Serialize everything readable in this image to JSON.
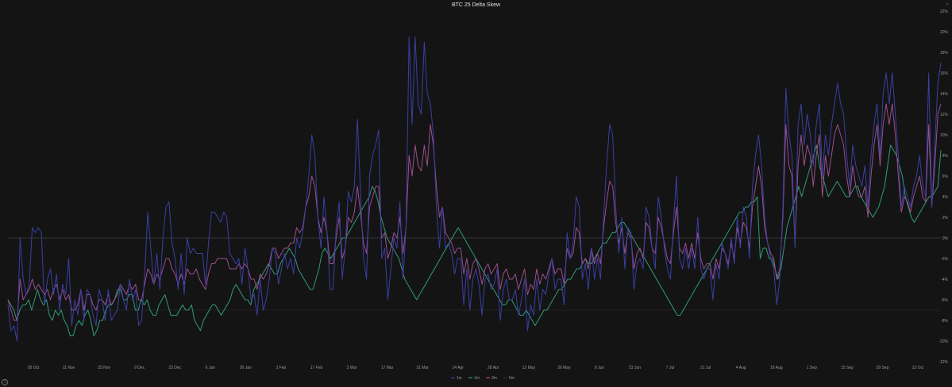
{
  "chart_data": {
    "type": "line",
    "title": "BTC 25 Delta Skew",
    "xlabel": "",
    "ylabel": "",
    "ylim": [
      -12,
      22
    ],
    "y_ticks": [
      "22%",
      "20%",
      "18%",
      "16%",
      "14%",
      "12%",
      "10%",
      "8%",
      "6%",
      "4%",
      "2%",
      "0%",
      "-2%",
      "-4%",
      "-6%",
      "-8%",
      "-10%",
      "-12%"
    ],
    "x_ticks": [
      "28 Oct",
      "11 Nov",
      "25 Nov",
      "9 Dec",
      "23 Dec",
      "6 Jan",
      "20 Jan",
      "3 Feb",
      "17 Feb",
      "3 Mar",
      "17 Mar",
      "31 Mar",
      "14 Apr",
      "28 Apr",
      "12 May",
      "26 May",
      "9 Jun",
      "23 Jun",
      "7 Jul",
      "21 Jul",
      "4 Aug",
      "18 Aug",
      "1 Sep",
      "15 Sep",
      "29 Sep",
      "13 Oct"
    ],
    "legend_position": "bottom-center",
    "grid": false,
    "zero_line": true,
    "series": [
      {
        "name": "1w",
        "color": "#3b3fa3",
        "values": [
          -6.5,
          -9,
          -8.5,
          -10,
          0,
          -4,
          -5.5,
          -4.5,
          1,
          0.5,
          1,
          0.5,
          -6.5,
          -4,
          -3,
          -5.5,
          -3.5,
          -7,
          -4.5,
          -5.5,
          -2,
          -8.5,
          -6,
          -7.5,
          -5,
          -8,
          -5,
          -5.5,
          -7.5,
          -8.5,
          -5,
          -6,
          -8,
          -5,
          -8,
          -7.5,
          -7,
          -4.5,
          -6,
          -7,
          -4,
          -6,
          -5,
          -8.5,
          -8,
          -3.5,
          2.5,
          -1,
          -4.5,
          -1.5,
          -5,
          0,
          3,
          3.5,
          -0.5,
          -2,
          -5,
          -1.5,
          -5.5,
          0,
          -1.5,
          -1,
          -1.5,
          -1.5,
          -1.5,
          -4.5,
          -0.5,
          2.5,
          2.5,
          2,
          1.5,
          2.5,
          2,
          -1.5,
          -2,
          -2.5,
          -2,
          -4.5,
          -1,
          -3,
          -6,
          -5.5,
          -7.5,
          -4,
          -7,
          -6,
          -4,
          -1,
          -1.5,
          -4.5,
          -3,
          -1.5,
          -3,
          -2,
          -3.5,
          0,
          -1,
          0.5,
          3,
          6,
          10,
          8,
          2,
          -1,
          4,
          0.5,
          -5,
          -5,
          1,
          3.5,
          -4,
          -1,
          4.5,
          3.5,
          5,
          11.5,
          4.5,
          -2,
          -4,
          6,
          8,
          9,
          10.5,
          -2,
          -1,
          -6,
          -3,
          0,
          -1,
          3.5,
          -4,
          1,
          19.5,
          11,
          19.5,
          13,
          12,
          19,
          14,
          13,
          10,
          3,
          -1,
          3,
          -1,
          -0.5,
          -1.5,
          -3.5,
          -2,
          -2,
          -6.5,
          -3,
          -7,
          -4,
          -3,
          -4.5,
          -7.5,
          -4,
          -3.5,
          -5,
          -4.5,
          -3,
          -8,
          -5,
          -4,
          -6,
          -6,
          -5,
          -7.5,
          -6,
          -4,
          -9,
          -6.5,
          -7.5,
          -4,
          -7,
          -5,
          -5.5,
          -3.5,
          -2,
          -5,
          -4,
          -4,
          -6.5,
          0.5,
          -2,
          -0.5,
          4,
          3,
          -4,
          -2.5,
          -5,
          -1,
          -4,
          -2,
          -4,
          2,
          7,
          11,
          10,
          3,
          -1.5,
          2,
          -3,
          1,
          0.5,
          -5,
          -2.5,
          -2,
          -3,
          3,
          2,
          -1,
          -3,
          4,
          2,
          -1,
          -3,
          -4,
          1.5,
          6,
          -2,
          -3,
          -1,
          -3,
          -1,
          -3,
          2,
          -3,
          -4,
          -3,
          -3,
          -6,
          -2.5,
          -4,
          -0.5,
          -1.5,
          -3,
          0,
          -2.5,
          2,
          -1,
          3,
          2,
          -2,
          5,
          8,
          10,
          7,
          2,
          -0.5,
          -2,
          -3,
          -6.5,
          -4,
          3,
          14.5,
          10,
          8,
          -1,
          11,
          13,
          9,
          12,
          10,
          7,
          11,
          13,
          6,
          10,
          8,
          11,
          13,
          15,
          13,
          12,
          8,
          5,
          9,
          7,
          6,
          5,
          7,
          3,
          8,
          11,
          13,
          8,
          14,
          16,
          13,
          16,
          12,
          8,
          3,
          5,
          4,
          3,
          5,
          6,
          8,
          5,
          4,
          16,
          3,
          9,
          15,
          17
        ]
      },
      {
        "name": "1m",
        "color": "#2e9c77",
        "values": [
          -6,
          -6.5,
          -7,
          -8,
          -7,
          -6.5,
          -6.5,
          -6,
          -7,
          -6,
          -5,
          -6,
          -6.5,
          -6,
          -7.5,
          -8,
          -7,
          -7.5,
          -7,
          -8,
          -8.5,
          -9.5,
          -9.5,
          -8.5,
          -8,
          -8.5,
          -7.5,
          -7,
          -8,
          -9.5,
          -9,
          -8,
          -8,
          -7,
          -6.5,
          -6.5,
          -6,
          -5,
          -5,
          -6,
          -6,
          -5.5,
          -5.5,
          -7,
          -7,
          -6,
          -6.5,
          -6,
          -7,
          -7.5,
          -7.5,
          -6.5,
          -6,
          -5.5,
          -6.5,
          -7.5,
          -7.5,
          -7.5,
          -7,
          -6.5,
          -7,
          -7,
          -6.5,
          -8,
          -8.5,
          -9,
          -8,
          -7.5,
          -7,
          -6.5,
          -6.5,
          -7,
          -7.5,
          -7,
          -6.5,
          -6,
          -5,
          -4.5,
          -5,
          -5.5,
          -6,
          -6,
          -6.5,
          -5,
          -4.5,
          -4,
          -3.5,
          -3,
          -2.5,
          -3,
          -3.5,
          -3.5,
          -2.5,
          -2,
          -1.5,
          -1,
          -1.5,
          -2,
          -3,
          -3.5,
          -4,
          -4.5,
          -5,
          -5,
          -4,
          -3,
          -1.5,
          -1,
          -1.5,
          -2,
          -1.5,
          -1,
          -0.5,
          0,
          0,
          0.5,
          1,
          1.5,
          2,
          2.5,
          3,
          3.5,
          4,
          5,
          4.5,
          3.5,
          2,
          1,
          0,
          -0.5,
          -1,
          -1.5,
          -2,
          -3,
          -4,
          -4.5,
          -5,
          -5.5,
          -6,
          -5.5,
          -5,
          -4.5,
          -4,
          -3.5,
          -3,
          -2.5,
          -2,
          -1.5,
          -1,
          -0.5,
          0,
          0.5,
          1,
          0.5,
          0,
          -0.5,
          -1,
          -1.5,
          -2,
          -2.5,
          -3,
          -3.5,
          -4,
          -4.5,
          -5,
          -5.5,
          -6,
          -6.5,
          -6.5,
          -6,
          -6,
          -6.5,
          -7,
          -7.5,
          -7.5,
          -7,
          -7.5,
          -8,
          -8.5,
          -8,
          -7.5,
          -7,
          -7,
          -6.5,
          -6,
          -5.5,
          -5,
          -5,
          -4.5,
          -4,
          -4,
          -3.5,
          -3,
          -3,
          -2.5,
          -2,
          -2.5,
          -2.5,
          -2,
          -1.5,
          -1,
          -0.5,
          -0.5,
          0,
          0.5,
          0.5,
          1,
          1.5,
          1.5,
          1,
          0.5,
          0,
          -0.5,
          -1,
          -1.5,
          -2,
          -2.5,
          -3,
          -3.5,
          -4,
          -4.5,
          -5,
          -5.5,
          -6,
          -6.5,
          -7,
          -7.5,
          -7.5,
          -7,
          -6.5,
          -6,
          -5.5,
          -5,
          -4.5,
          -4,
          -3.5,
          -3,
          -2.5,
          -2,
          -1.5,
          -1,
          -0.5,
          0,
          0.5,
          1,
          1.5,
          2,
          2.5,
          2.5,
          3,
          3,
          3.5,
          3.5,
          4,
          -2,
          -1,
          -1,
          -2,
          -2,
          -3,
          -4,
          -3,
          -1,
          1,
          2,
          3,
          4,
          5,
          4,
          5,
          6,
          7,
          8,
          9,
          7,
          6,
          5,
          4,
          4.5,
          5,
          5.5,
          5,
          4.5,
          4,
          4,
          4.5,
          5,
          5,
          4,
          3.5,
          3,
          2.5,
          2,
          2.5,
          3,
          4,
          5,
          7,
          9,
          8.5,
          8,
          7,
          6,
          4,
          3,
          2,
          1.5,
          2,
          2.5,
          3,
          3.5,
          4,
          4,
          4.5,
          5,
          8.5
        ]
      },
      {
        "name": "3m",
        "color": "#9a4f8f",
        "values": [
          -6,
          -7,
          -8,
          -8,
          -4,
          -6,
          -5.5,
          -5,
          -4,
          -5,
          -4.5,
          -5,
          -5.5,
          -5,
          -6,
          -5,
          -4.5,
          -6,
          -5,
          -6,
          -5.5,
          -7,
          -7,
          -6.5,
          -5,
          -7,
          -5.5,
          -5.5,
          -6.5,
          -7,
          -6,
          -6,
          -6.5,
          -5.5,
          -6.5,
          -6,
          -5.5,
          -4.5,
          -5,
          -5.5,
          -4.5,
          -5,
          -4.5,
          -6,
          -6,
          -4.5,
          -3,
          -3.5,
          -4.5,
          -3.5,
          -4,
          -3,
          -2,
          -2,
          -3,
          -3.5,
          -4.5,
          -3.5,
          -4.5,
          -3,
          -3.5,
          -3.5,
          -3,
          -4,
          -4.5,
          -5,
          -3.5,
          -2.5,
          -2.5,
          -2,
          -2,
          -2,
          -2,
          -3,
          -3,
          -3,
          -2.5,
          -3,
          -2.5,
          -3,
          -4,
          -4,
          -5,
          -3.5,
          -4,
          -3.5,
          -2.5,
          -1,
          -1,
          -2,
          -1.5,
          -1,
          -1,
          -0.5,
          -0.5,
          1,
          0.5,
          1,
          3,
          4,
          6,
          5,
          2,
          0.5,
          2,
          0.5,
          -2.5,
          -2.5,
          0,
          2,
          -2,
          -1,
          2,
          1.5,
          2.5,
          5,
          2.5,
          -0.5,
          -1.5,
          3,
          4,
          5,
          5,
          0,
          0.5,
          -2,
          -1,
          0.5,
          0,
          2,
          -1.5,
          1,
          8,
          6,
          9,
          7,
          6.5,
          9,
          7,
          11,
          9,
          5,
          2,
          3,
          0.5,
          0,
          -0.5,
          -1.5,
          -1,
          -1,
          -3.5,
          -2,
          -4,
          -2.5,
          -2,
          -3,
          -4.5,
          -3,
          -2.5,
          -3.5,
          -3,
          -2.5,
          -5,
          -3.5,
          -3,
          -4,
          -4,
          -3.5,
          -5,
          -4,
          -3,
          -5.5,
          -4.5,
          -5,
          -3,
          -4.5,
          -3.5,
          -4,
          -3,
          -2,
          -3.5,
          -3,
          -3,
          -4.5,
          -1,
          -2,
          -1.5,
          1,
          0.5,
          -2.5,
          -2,
          -3,
          -1,
          -2.5,
          -1.5,
          -2.5,
          1,
          3.5,
          5.5,
          5,
          1.5,
          -0.5,
          1,
          -1.5,
          0.5,
          0,
          -3,
          -1.5,
          -1,
          -2,
          1.5,
          1,
          -1,
          -1.5,
          2,
          1,
          -0.5,
          -2,
          -2.5,
          0.5,
          3,
          -1,
          -1.5,
          -0.5,
          -2,
          -0.5,
          -2,
          0.5,
          -2,
          -3,
          -2.5,
          -2.5,
          -4,
          -2,
          -3,
          -1,
          -1.5,
          -2.5,
          -0.5,
          -2,
          1,
          -0.5,
          1.5,
          1,
          -1,
          3,
          5,
          7,
          5,
          1,
          -0.5,
          -1.5,
          -2,
          -4,
          -3,
          2,
          11,
          7,
          6,
          -0.5,
          7,
          10,
          7,
          9,
          8,
          5,
          8,
          10,
          4,
          8,
          6,
          8,
          10,
          11,
          10,
          9,
          6,
          4,
          7,
          5,
          4,
          4,
          5,
          2,
          6,
          9,
          11,
          7,
          11,
          13,
          11,
          13,
          10,
          6,
          2.5,
          4,
          3.5,
          2.5,
          4,
          5,
          6,
          4,
          3.5,
          11,
          3,
          7,
          12,
          13
        ]
      },
      {
        "name": "6m",
        "color": "#2b2d3a",
        "values": [
          -7,
          -7,
          -7,
          -7,
          -7,
          -7,
          -7,
          -7,
          -7,
          -7,
          -7,
          -7,
          -7,
          -7,
          -7,
          -7,
          -7,
          -7,
          -7,
          -7,
          -7,
          -7,
          -7,
          -7,
          -7,
          -7,
          -7,
          -7,
          -7,
          -7,
          -7,
          -7,
          -7,
          -7,
          -7,
          -7,
          -7,
          -7,
          -7,
          -7,
          -7,
          -7,
          -7,
          -7,
          -7,
          -7,
          -7,
          -7,
          -7,
          -7
        ]
      }
    ]
  }
}
